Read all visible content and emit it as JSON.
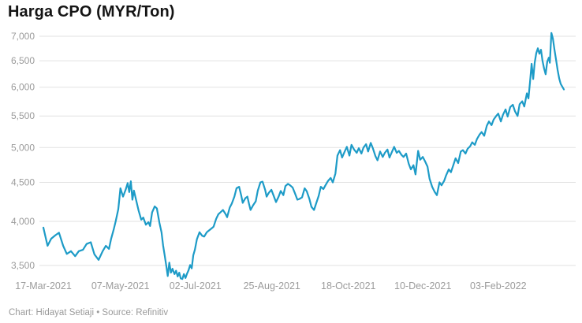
{
  "title": "Harga CPO (MYR/Ton)",
  "footer": {
    "text": "Chart: Hidayat Setiaji • Source: Refinitiv"
  },
  "colors": {
    "line": "#1d9bc7",
    "grid": "#e2e2e2",
    "axis_text": "#9b9b9b",
    "title_text": "#141414",
    "background": "#ffffff"
  },
  "chart_data": {
    "type": "line",
    "title": "Harga CPO (MYR/Ton)",
    "unit": "MYR/Ton",
    "legend": "none",
    "grid": "horizontal",
    "y_scale": "log",
    "ylim": [
      3500,
      7000
    ],
    "y_ticks": [
      7000,
      6500,
      6000,
      5500,
      5000,
      4500,
      4000,
      3500
    ],
    "y_tick_labels": [
      "7,000",
      "6,500",
      "6,000",
      "5,500",
      "5,000",
      "4,500",
      "4,000",
      "3,500"
    ],
    "x_ticks": [
      {
        "label": "17-Mar-2021",
        "pos": 0.0
      },
      {
        "label": "07-May-2021",
        "pos": 0.148
      },
      {
        "label": "02-Jul-2021",
        "pos": 0.292
      },
      {
        "label": "25-Aug-2021",
        "pos": 0.439
      },
      {
        "label": "18-Oct-2021",
        "pos": 0.586
      },
      {
        "label": "10-Dec-2021",
        "pos": 0.729
      },
      {
        "label": "03-Feb-2022",
        "pos": 0.874
      }
    ],
    "series": [
      {
        "name": "Harga CPO (MYR/Ton)",
        "points": [
          [
            0.0,
            3925
          ],
          [
            0.008,
            3715
          ],
          [
            0.015,
            3795
          ],
          [
            0.023,
            3835
          ],
          [
            0.03,
            3865
          ],
          [
            0.038,
            3715
          ],
          [
            0.045,
            3625
          ],
          [
            0.053,
            3655
          ],
          [
            0.061,
            3600
          ],
          [
            0.068,
            3655
          ],
          [
            0.076,
            3670
          ],
          [
            0.083,
            3735
          ],
          [
            0.091,
            3755
          ],
          [
            0.098,
            3620
          ],
          [
            0.106,
            3560
          ],
          [
            0.114,
            3655
          ],
          [
            0.12,
            3715
          ],
          [
            0.126,
            3680
          ],
          [
            0.13,
            3790
          ],
          [
            0.135,
            3900
          ],
          [
            0.139,
            4000
          ],
          [
            0.144,
            4150
          ],
          [
            0.148,
            4420
          ],
          [
            0.153,
            4310
          ],
          [
            0.158,
            4400
          ],
          [
            0.162,
            4490
          ],
          [
            0.165,
            4370
          ],
          [
            0.168,
            4515
          ],
          [
            0.171,
            4270
          ],
          [
            0.174,
            4390
          ],
          [
            0.179,
            4245
          ],
          [
            0.183,
            4130
          ],
          [
            0.188,
            4020
          ],
          [
            0.192,
            4045
          ],
          [
            0.197,
            3960
          ],
          [
            0.202,
            3990
          ],
          [
            0.205,
            3945
          ],
          [
            0.209,
            4110
          ],
          [
            0.214,
            4185
          ],
          [
            0.218,
            4160
          ],
          [
            0.223,
            3980
          ],
          [
            0.227,
            3870
          ],
          [
            0.23,
            3720
          ],
          [
            0.233,
            3610
          ],
          [
            0.236,
            3500
          ],
          [
            0.239,
            3390
          ],
          [
            0.242,
            3530
          ],
          [
            0.245,
            3425
          ],
          [
            0.248,
            3465
          ],
          [
            0.252,
            3410
          ],
          [
            0.255,
            3445
          ],
          [
            0.258,
            3385
          ],
          [
            0.261,
            3425
          ],
          [
            0.264,
            3365
          ],
          [
            0.267,
            3360
          ],
          [
            0.27,
            3410
          ],
          [
            0.273,
            3370
          ],
          [
            0.276,
            3415
          ],
          [
            0.279,
            3450
          ],
          [
            0.282,
            3505
          ],
          [
            0.285,
            3470
          ],
          [
            0.288,
            3610
          ],
          [
            0.291,
            3670
          ],
          [
            0.295,
            3790
          ],
          [
            0.3,
            3870
          ],
          [
            0.305,
            3830
          ],
          [
            0.309,
            3820
          ],
          [
            0.314,
            3870
          ],
          [
            0.318,
            3890
          ],
          [
            0.323,
            3915
          ],
          [
            0.327,
            3935
          ],
          [
            0.332,
            4030
          ],
          [
            0.336,
            4085
          ],
          [
            0.341,
            4115
          ],
          [
            0.345,
            4140
          ],
          [
            0.35,
            4090
          ],
          [
            0.353,
            4050
          ],
          [
            0.358,
            4170
          ],
          [
            0.362,
            4220
          ],
          [
            0.367,
            4310
          ],
          [
            0.371,
            4420
          ],
          [
            0.376,
            4440
          ],
          [
            0.38,
            4330
          ],
          [
            0.383,
            4230
          ],
          [
            0.388,
            4290
          ],
          [
            0.392,
            4310
          ],
          [
            0.395,
            4220
          ],
          [
            0.398,
            4140
          ],
          [
            0.403,
            4200
          ],
          [
            0.408,
            4250
          ],
          [
            0.412,
            4390
          ],
          [
            0.417,
            4500
          ],
          [
            0.421,
            4510
          ],
          [
            0.426,
            4400
          ],
          [
            0.429,
            4310
          ],
          [
            0.433,
            4360
          ],
          [
            0.438,
            4400
          ],
          [
            0.442,
            4330
          ],
          [
            0.447,
            4240
          ],
          [
            0.452,
            4310
          ],
          [
            0.456,
            4385
          ],
          [
            0.461,
            4330
          ],
          [
            0.465,
            4450
          ],
          [
            0.47,
            4480
          ],
          [
            0.474,
            4460
          ],
          [
            0.479,
            4430
          ],
          [
            0.483,
            4360
          ],
          [
            0.488,
            4270
          ],
          [
            0.492,
            4280
          ],
          [
            0.497,
            4300
          ],
          [
            0.502,
            4420
          ],
          [
            0.506,
            4380
          ],
          [
            0.511,
            4280
          ],
          [
            0.515,
            4180
          ],
          [
            0.52,
            4140
          ],
          [
            0.524,
            4220
          ],
          [
            0.529,
            4320
          ],
          [
            0.533,
            4440
          ],
          [
            0.538,
            4410
          ],
          [
            0.542,
            4460
          ],
          [
            0.547,
            4520
          ],
          [
            0.552,
            4560
          ],
          [
            0.556,
            4500
          ],
          [
            0.561,
            4620
          ],
          [
            0.565,
            4880
          ],
          [
            0.57,
            4960
          ],
          [
            0.574,
            4850
          ],
          [
            0.579,
            4940
          ],
          [
            0.583,
            5010
          ],
          [
            0.588,
            4880
          ],
          [
            0.592,
            5040
          ],
          [
            0.597,
            4970
          ],
          [
            0.602,
            4920
          ],
          [
            0.606,
            4990
          ],
          [
            0.611,
            4910
          ],
          [
            0.615,
            5000
          ],
          [
            0.62,
            5050
          ],
          [
            0.624,
            4940
          ],
          [
            0.629,
            5070
          ],
          [
            0.633,
            4990
          ],
          [
            0.638,
            4870
          ],
          [
            0.642,
            4810
          ],
          [
            0.647,
            4940
          ],
          [
            0.652,
            4860
          ],
          [
            0.656,
            4920
          ],
          [
            0.661,
            4970
          ],
          [
            0.665,
            4850
          ],
          [
            0.67,
            4940
          ],
          [
            0.674,
            5010
          ],
          [
            0.679,
            4920
          ],
          [
            0.683,
            4950
          ],
          [
            0.688,
            4890
          ],
          [
            0.692,
            4860
          ],
          [
            0.697,
            4910
          ],
          [
            0.702,
            4760
          ],
          [
            0.706,
            4680
          ],
          [
            0.711,
            4740
          ],
          [
            0.715,
            4610
          ],
          [
            0.72,
            4950
          ],
          [
            0.724,
            4820
          ],
          [
            0.729,
            4860
          ],
          [
            0.733,
            4800
          ],
          [
            0.738,
            4720
          ],
          [
            0.742,
            4550
          ],
          [
            0.747,
            4440
          ],
          [
            0.752,
            4370
          ],
          [
            0.756,
            4330
          ],
          [
            0.761,
            4500
          ],
          [
            0.765,
            4460
          ],
          [
            0.77,
            4520
          ],
          [
            0.774,
            4600
          ],
          [
            0.779,
            4680
          ],
          [
            0.783,
            4640
          ],
          [
            0.788,
            4750
          ],
          [
            0.792,
            4840
          ],
          [
            0.797,
            4770
          ],
          [
            0.802,
            4940
          ],
          [
            0.806,
            4960
          ],
          [
            0.811,
            4910
          ],
          [
            0.815,
            4980
          ],
          [
            0.82,
            5020
          ],
          [
            0.824,
            5080
          ],
          [
            0.829,
            5040
          ],
          [
            0.833,
            5130
          ],
          [
            0.838,
            5200
          ],
          [
            0.842,
            5240
          ],
          [
            0.847,
            5180
          ],
          [
            0.852,
            5340
          ],
          [
            0.856,
            5410
          ],
          [
            0.861,
            5350
          ],
          [
            0.865,
            5440
          ],
          [
            0.87,
            5500
          ],
          [
            0.874,
            5540
          ],
          [
            0.879,
            5410
          ],
          [
            0.883,
            5520
          ],
          [
            0.888,
            5610
          ],
          [
            0.892,
            5490
          ],
          [
            0.897,
            5650
          ],
          [
            0.902,
            5690
          ],
          [
            0.906,
            5580
          ],
          [
            0.911,
            5500
          ],
          [
            0.915,
            5700
          ],
          [
            0.92,
            5750
          ],
          [
            0.924,
            5660
          ],
          [
            0.929,
            5890
          ],
          [
            0.932,
            5800
          ],
          [
            0.935,
            6100
          ],
          [
            0.938,
            6440
          ],
          [
            0.941,
            6150
          ],
          [
            0.944,
            6460
          ],
          [
            0.947,
            6650
          ],
          [
            0.95,
            6750
          ],
          [
            0.953,
            6640
          ],
          [
            0.956,
            6720
          ],
          [
            0.959,
            6500
          ],
          [
            0.962,
            6350
          ],
          [
            0.965,
            6240
          ],
          [
            0.968,
            6480
          ],
          [
            0.971,
            6560
          ],
          [
            0.973,
            6460
          ],
          [
            0.976,
            7070
          ],
          [
            0.979,
            6950
          ],
          [
            0.982,
            6720
          ],
          [
            0.985,
            6520
          ],
          [
            0.988,
            6320
          ],
          [
            0.991,
            6160
          ],
          [
            0.994,
            6060
          ],
          [
            0.997,
            6010
          ],
          [
            1.0,
            5960
          ]
        ]
      }
    ]
  }
}
